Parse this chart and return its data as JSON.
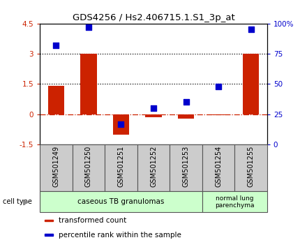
{
  "title": "GDS4256 / Hs2.406715.1.S1_3p_at",
  "samples": [
    "GSM501249",
    "GSM501250",
    "GSM501251",
    "GSM501252",
    "GSM501253",
    "GSM501254",
    "GSM501255"
  ],
  "transformed_count": [
    1.4,
    3.0,
    -1.0,
    -0.15,
    -0.2,
    -0.05,
    3.0
  ],
  "percentile_rank": [
    82,
    97,
    17,
    30,
    35,
    48,
    95
  ],
  "ylim_left": [
    -1.5,
    4.5
  ],
  "ylim_right": [
    0,
    100
  ],
  "yticks_left": [
    -1.5,
    0,
    1.5,
    3,
    4.5
  ],
  "yticks_right": [
    0,
    25,
    50,
    75,
    100
  ],
  "ytick_labels_left": [
    "-1.5",
    "0",
    "1.5",
    "3",
    "4.5"
  ],
  "ytick_labels_right": [
    "0",
    "25",
    "50",
    "75",
    "100%"
  ],
  "hlines": [
    0,
    1.5,
    3.0
  ],
  "hline_styles": [
    "dashdot",
    "dotted",
    "dotted"
  ],
  "hline_colors": [
    "#cc2200",
    "#000000",
    "#000000"
  ],
  "bar_color": "#cc2200",
  "dot_color": "#0000cc",
  "group1_label": "caseous TB granulomas",
  "group1_samples": 5,
  "group2_label": "normal lung\nparenchyma",
  "group2_samples": 2,
  "group_color": "#ccffcc",
  "sample_box_color": "#cccccc",
  "cell_type_label": "cell type",
  "legend_items": [
    {
      "color": "#cc2200",
      "label": "transformed count"
    },
    {
      "color": "#0000cc",
      "label": "percentile rank within the sample"
    }
  ],
  "bar_width": 0.5,
  "dot_size": 40,
  "title_fontsize": 9.5,
  "tick_fontsize": 7.5,
  "label_fontsize": 7.5,
  "sample_fontsize": 7
}
